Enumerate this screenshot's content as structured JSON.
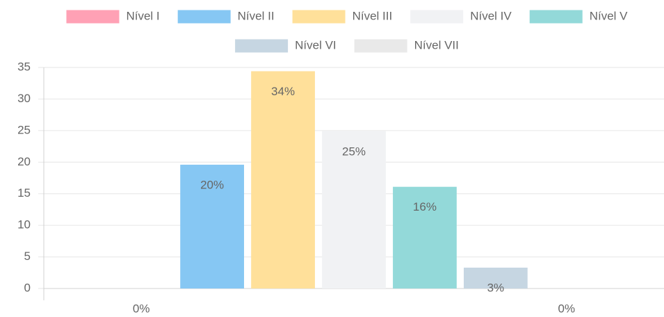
{
  "chart_data": {
    "type": "bar",
    "categories": [
      null
    ],
    "series": [
      {
        "name": "Nível I",
        "color": "#ffa1b5",
        "values": [
          0
        ],
        "value_labels": [
          "0%"
        ]
      },
      {
        "name": "Nível II",
        "color": "#86c7f3",
        "values": [
          19.6
        ],
        "value_labels": [
          "20%"
        ]
      },
      {
        "name": "Nível III",
        "color": "#ffe09a",
        "values": [
          34.4
        ],
        "value_labels": [
          "34%"
        ]
      },
      {
        "name": "Nível IV",
        "color": "#f1f2f4",
        "values": [
          24.9
        ],
        "value_labels": [
          "25%"
        ]
      },
      {
        "name": "Nível V",
        "color": "#93d9d9",
        "values": [
          16.1
        ],
        "value_labels": [
          "16%"
        ]
      },
      {
        "name": "Nível VI",
        "color": "#c6d6e2",
        "values": [
          3.3
        ],
        "value_labels": [
          "3%"
        ]
      },
      {
        "name": "Nível VII",
        "color": "#e9e9e9",
        "values": [
          0
        ],
        "value_labels": [
          "0%"
        ]
      }
    ],
    "ylim": [
      0,
      35
    ],
    "yticks": [
      0,
      5,
      10,
      15,
      20,
      25,
      30,
      35
    ],
    "grid": true,
    "legend": "top"
  }
}
